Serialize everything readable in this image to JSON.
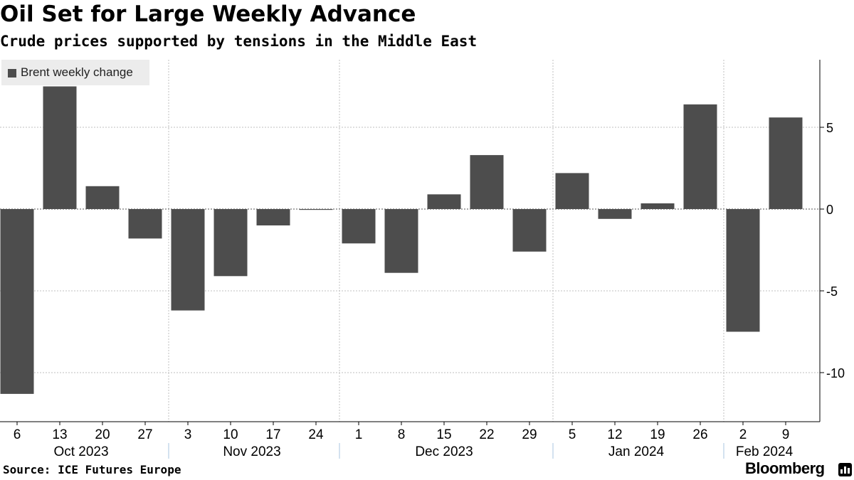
{
  "header": {
    "title": "Oil Set for Large Weekly Advance",
    "subtitle": "Crude prices supported by tensions in the Middle East"
  },
  "footer": {
    "source": "Source: ICE Futures Europe",
    "brand": "Bloomberg"
  },
  "colors": {
    "bar": "#4d4d4d",
    "grid": "#bfbfbf",
    "axis": "#000000",
    "legend_bg": "#ececec"
  },
  "chart_data": {
    "type": "bar",
    "title": "Oil Set for Large Weekly Advance",
    "subtitle": "Crude prices supported by tensions in the Middle East",
    "legend": {
      "entries": [
        "Brent weekly change"
      ],
      "placement": "top-left"
    },
    "categories": [
      "6",
      "13",
      "20",
      "27",
      "3",
      "10",
      "17",
      "24",
      "1",
      "8",
      "15",
      "22",
      "29",
      "5",
      "12",
      "19",
      "26",
      "2",
      "9"
    ],
    "series": [
      {
        "name": "Brent weekly change",
        "values": [
          -11.3,
          7.5,
          1.4,
          -1.8,
          -6.2,
          -4.1,
          -1.0,
          -0.05,
          -2.1,
          -3.9,
          0.9,
          3.3,
          -2.6,
          2.2,
          -0.6,
          0.35,
          6.4,
          -7.5,
          5.6
        ]
      }
    ],
    "month_groups": [
      {
        "label": "Oct 2023",
        "start": 0,
        "end": 3
      },
      {
        "label": "Nov 2023",
        "start": 4,
        "end": 7
      },
      {
        "label": "Dec 2023",
        "start": 8,
        "end": 12
      },
      {
        "label": "Jan 2024",
        "start": 13,
        "end": 16
      },
      {
        "label": "Feb 2024",
        "start": 17,
        "end": 18
      }
    ],
    "y_ticks": [
      5,
      0,
      -5,
      -10
    ],
    "y_tick_labels": [
      "5",
      "0",
      "-5",
      "-10"
    ],
    "ylim": [
      -13,
      9
    ],
    "grid": true,
    "y_axis_position": "right"
  }
}
